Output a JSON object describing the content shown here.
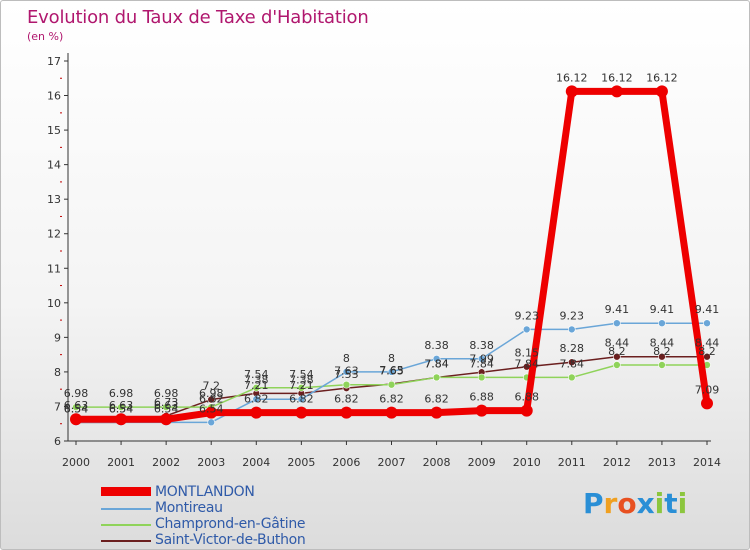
{
  "header": {
    "title": "Evolution du Taux de Taxe d'Habitation",
    "subtitle": "(en %)"
  },
  "colors": {
    "title": "#b0176e",
    "axis": "#333333",
    "grid_tick": "#c00000",
    "legend_text": "#2f5aa8"
  },
  "chart_data": {
    "type": "line",
    "title": "Evolution du Taux de Taxe d'Habitation",
    "subtitle": "(en %)",
    "xlabel": "",
    "ylabel": "",
    "ylim": [
      6,
      17
    ],
    "yticks": [
      "6",
      "7",
      "8",
      "9",
      "10",
      "11",
      "12",
      "13",
      "14",
      "15",
      "16",
      "17"
    ],
    "categories": [
      "2000",
      "2001",
      "2002",
      "2003",
      "2004",
      "2005",
      "2006",
      "2007",
      "2008",
      "2009",
      "2010",
      "2011",
      "2012",
      "2013",
      "2014"
    ],
    "legend_position": "bottom-left",
    "series": [
      {
        "name": "MONTLANDON",
        "color": "#ee0000",
        "width": 7,
        "values": [
          6.63,
          6.63,
          6.63,
          6.82,
          6.82,
          6.82,
          6.82,
          6.82,
          6.82,
          6.88,
          6.88,
          16.12,
          16.12,
          16.12,
          7.09
        ],
        "labels": [
          "6.63",
          "6.63",
          "6.63",
          "6.82",
          "6.82",
          "6.82",
          "6.82",
          "6.82",
          "6.82",
          "6.88",
          "6.88",
          "16.12",
          "16.12",
          "16.12",
          "7.09"
        ]
      },
      {
        "name": "Montireau",
        "color": "#6aa6d8",
        "width": 1.5,
        "values": [
          6.54,
          6.54,
          6.54,
          6.54,
          7.21,
          7.21,
          8,
          8,
          8.38,
          8.38,
          9.23,
          9.23,
          9.41,
          9.41,
          9.41
        ],
        "labels": [
          "6.54",
          "6.54",
          "6.54",
          "6.54",
          "7.21",
          "7.21",
          "8",
          "8",
          "8.38",
          "8.38",
          "9.23",
          "9.23",
          "9.41",
          "9.41",
          "9.41"
        ]
      },
      {
        "name": "Champrond-en-Gâtine",
        "color": "#8fd35a",
        "width": 1.5,
        "values": [
          6.98,
          6.98,
          6.98,
          6.98,
          7.54,
          7.54,
          7.63,
          7.63,
          7.84,
          7.84,
          7.84,
          7.84,
          8.2,
          8.2,
          8.2
        ],
        "labels": [
          "6.98",
          "6.98",
          "6.98",
          "6.98",
          "7.54",
          "7.54",
          "7.63",
          "7.63",
          "7.84",
          "7.84",
          "7.84",
          "7.84",
          "8.2",
          "8.2",
          "8.2"
        ]
      },
      {
        "name": "Saint-Victor-de-Buthon",
        "color": "#6b1f1f",
        "width": 1.5,
        "values": [
          6.54,
          6.54,
          6.73,
          7.2,
          7.38,
          7.38,
          7.53,
          7.65,
          7.84,
          7.99,
          8.15,
          8.28,
          8.44,
          8.44,
          8.44
        ],
        "labels": [
          "6.54",
          "6.54",
          "6.73",
          "7.2",
          "7.38",
          "7.38",
          "7.53",
          "7.65",
          "7.84",
          "7.99",
          "8.15",
          "8.28",
          "8.44",
          "8.44",
          "8.44"
        ]
      }
    ]
  },
  "legend": {
    "items": [
      {
        "label": "MONTLANDON",
        "color": "#ee0000",
        "thick": true
      },
      {
        "label": "Montireau",
        "color": "#6aa6d8",
        "thick": false
      },
      {
        "label": "Champrond-en-Gâtine",
        "color": "#8fd35a",
        "thick": false
      },
      {
        "label": "Saint-Victor-de-Buthon",
        "color": "#6b1f1f",
        "thick": false
      }
    ]
  },
  "brand": {
    "letters": [
      "P",
      "r",
      "o",
      "x",
      "i",
      "t",
      "i"
    ],
    "colors": [
      "#2a8fd6",
      "#f0a020",
      "#e85020",
      "#2a8fd6",
      "#8cc63e",
      "#2a8fd6",
      "#8cc63e"
    ]
  }
}
